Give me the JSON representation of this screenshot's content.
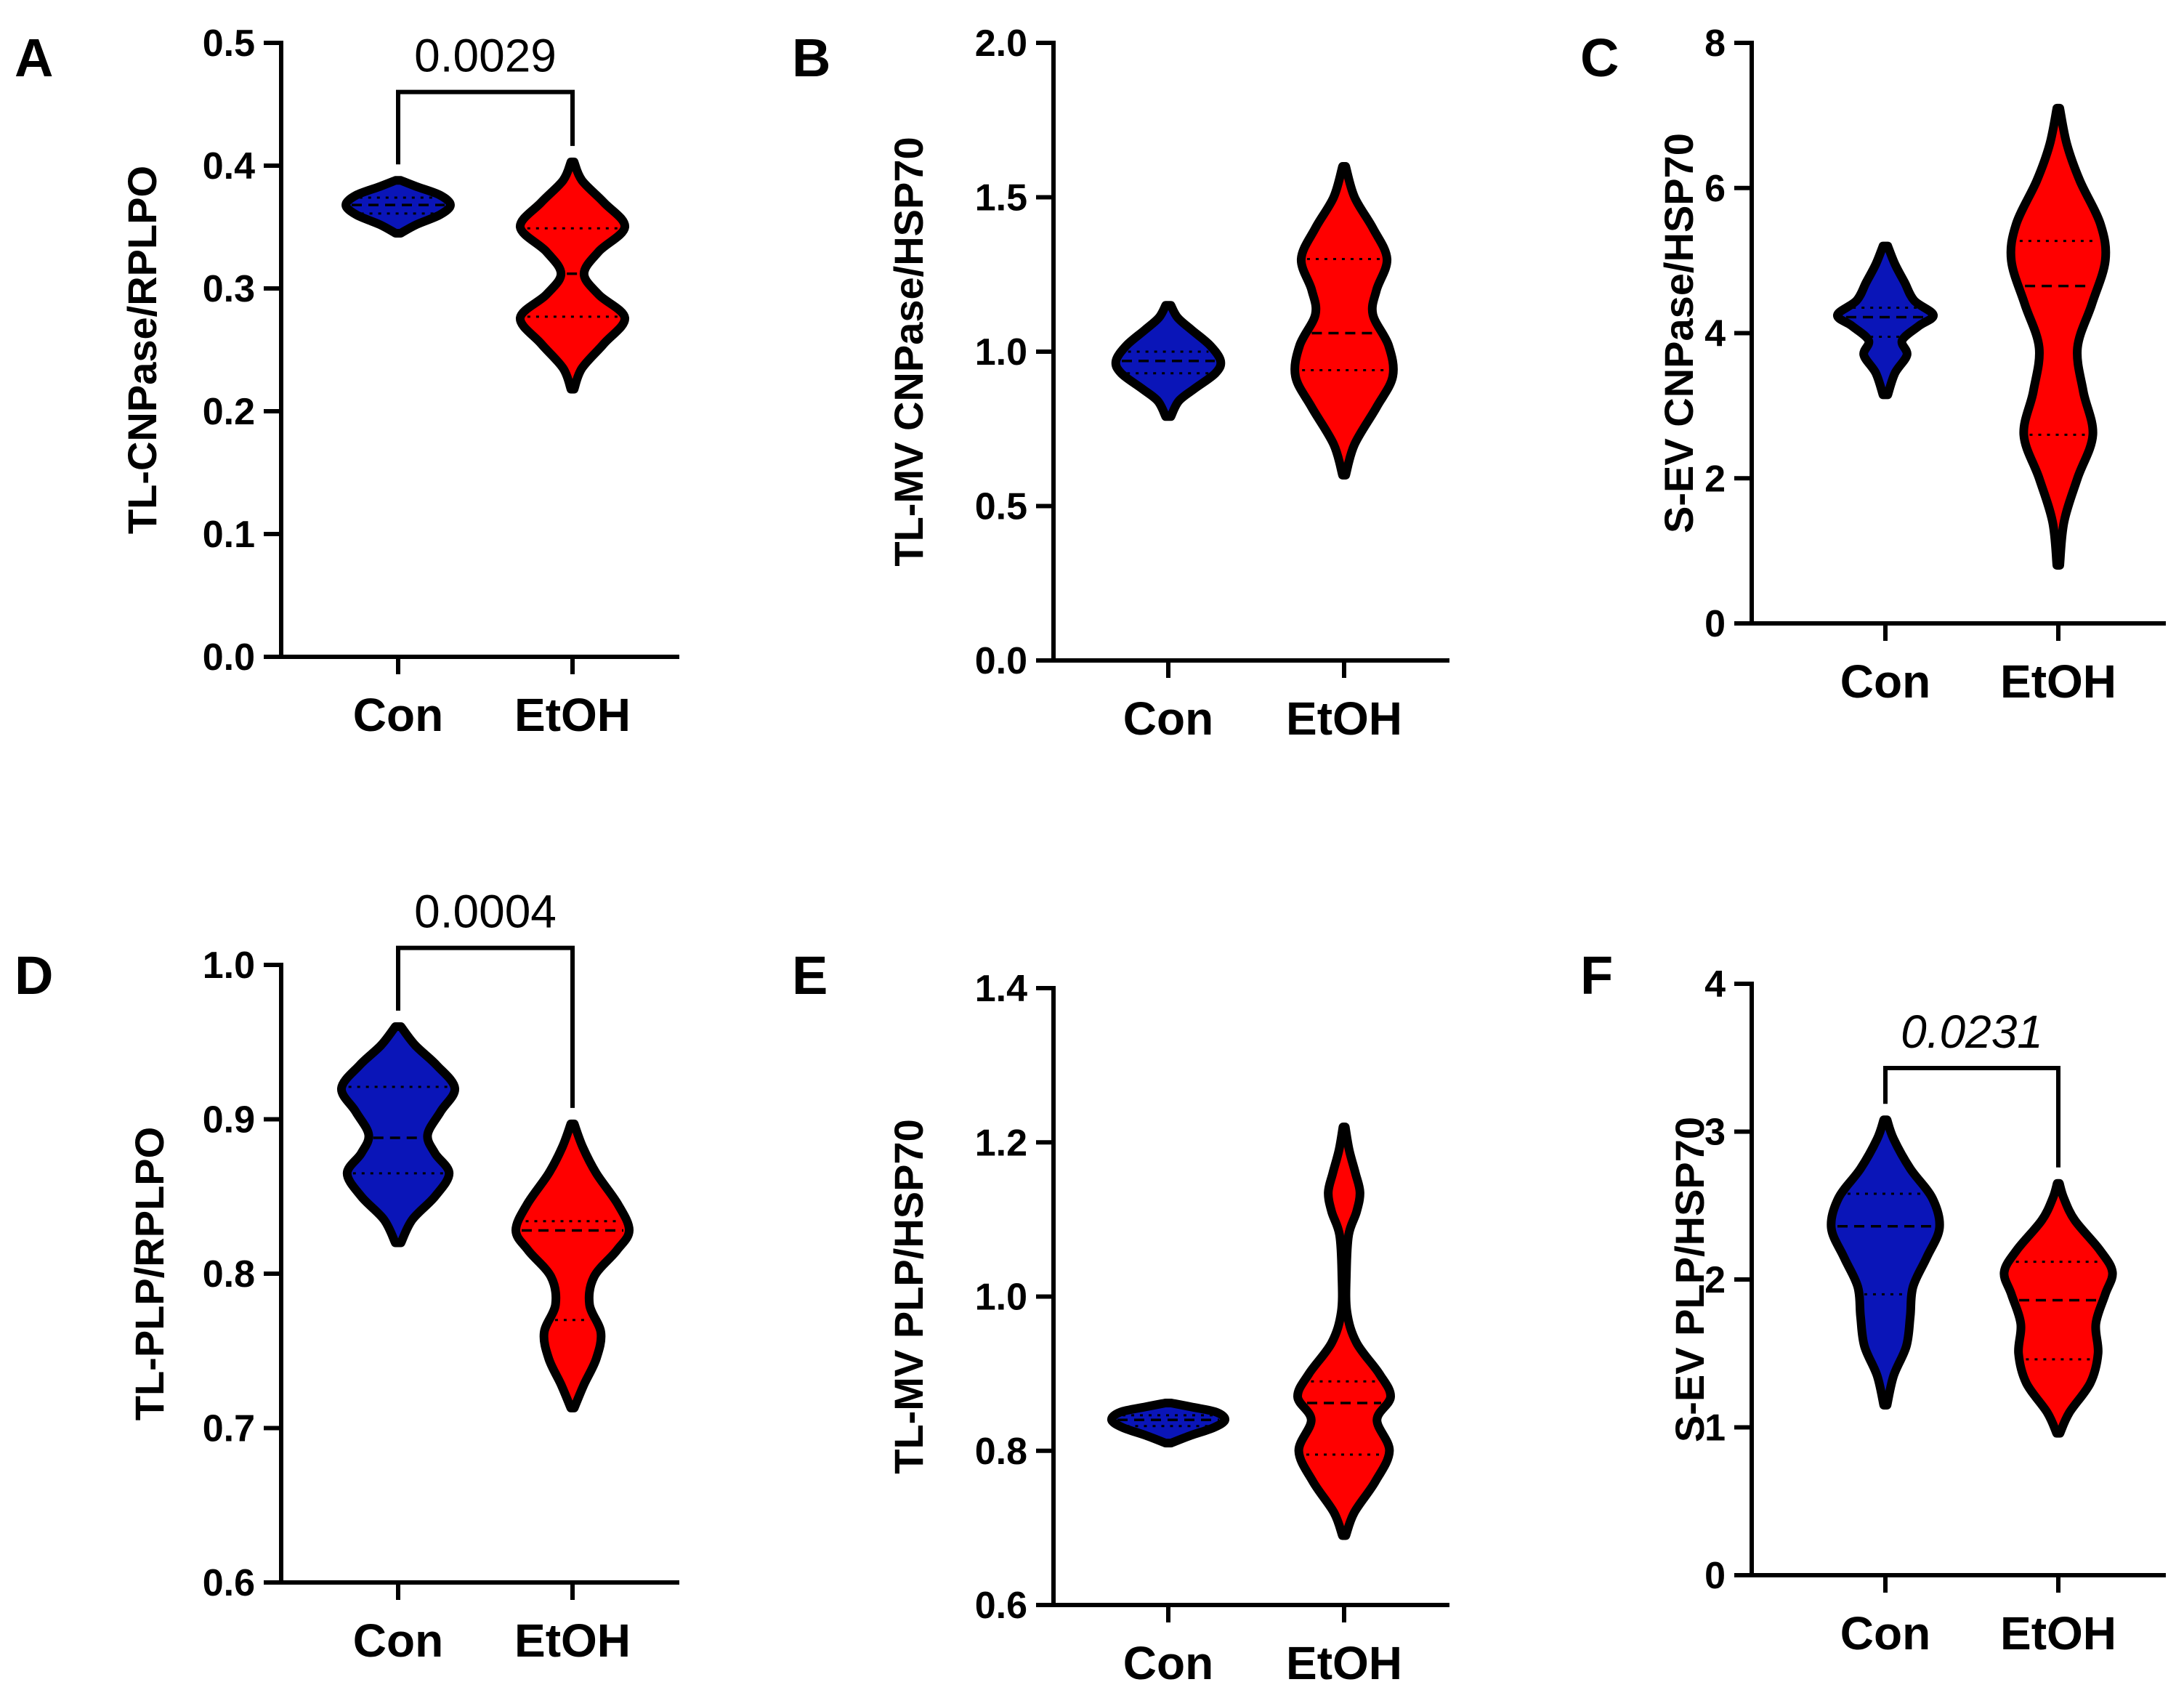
{
  "colors": {
    "con": "#0a15b8",
    "etoh": "#ff0000"
  },
  "chart_data": [
    {
      "id": "A",
      "panel_label": "A",
      "type": "violin",
      "ylabel": "TL-CNPase/RPLPO",
      "ylim": [
        0,
        0.5
      ],
      "yticks": [
        0.0,
        0.1,
        0.2,
        0.3,
        0.4,
        0.5
      ],
      "tick_labels": [
        "0.0",
        "0.1",
        "0.2",
        "0.3",
        "0.4",
        "0.5"
      ],
      "categories": [
        "Con",
        "EtOH"
      ],
      "significance": {
        "label": "0.0029",
        "italic": false,
        "y": 0.46
      },
      "series": [
        {
          "name": "Con",
          "color": "con",
          "min": 0.345,
          "max": 0.388,
          "median": 0.368,
          "q1": 0.361,
          "q3": 0.374,
          "profile": [
            [
              0.345,
              0.05
            ],
            [
              0.352,
              0.35
            ],
            [
              0.36,
              0.8
            ],
            [
              0.368,
              1.0
            ],
            [
              0.376,
              0.8
            ],
            [
              0.383,
              0.35
            ],
            [
              0.388,
              0.05
            ]
          ]
        },
        {
          "name": "EtOH",
          "color": "etoh",
          "min": 0.218,
          "max": 0.403,
          "median": 0.312,
          "q1": 0.277,
          "q3": 0.349,
          "profile": [
            [
              0.218,
              0.03
            ],
            [
              0.235,
              0.18
            ],
            [
              0.255,
              0.6
            ],
            [
              0.276,
              1.0
            ],
            [
              0.295,
              0.5
            ],
            [
              0.312,
              0.22
            ],
            [
              0.33,
              0.5
            ],
            [
              0.35,
              1.0
            ],
            [
              0.37,
              0.6
            ],
            [
              0.388,
              0.18
            ],
            [
              0.403,
              0.03
            ]
          ]
        }
      ]
    },
    {
      "id": "B",
      "panel_label": "B",
      "type": "violin",
      "ylabel": "TL-MV CNPase/HSP70",
      "ylim": [
        0,
        2.0
      ],
      "yticks": [
        0.0,
        0.5,
        1.0,
        1.5,
        2.0
      ],
      "tick_labels": [
        "0.0",
        "0.5",
        "1.0",
        "1.5",
        "2.0"
      ],
      "categories": [
        "Con",
        "EtOH"
      ],
      "series": [
        {
          "name": "Con",
          "color": "con",
          "min": 0.79,
          "max": 1.15,
          "median": 0.97,
          "q1": 0.93,
          "q3": 1.0,
          "profile": [
            [
              0.79,
              0.05
            ],
            [
              0.84,
              0.2
            ],
            [
              0.88,
              0.5
            ],
            [
              0.93,
              0.9
            ],
            [
              0.97,
              1.0
            ],
            [
              1.02,
              0.8
            ],
            [
              1.07,
              0.45
            ],
            [
              1.11,
              0.18
            ],
            [
              1.15,
              0.05
            ]
          ]
        },
        {
          "name": "EtOH",
          "color": "etoh",
          "min": 0.6,
          "max": 1.6,
          "median": 1.06,
          "q1": 0.94,
          "q3": 1.3,
          "profile": [
            [
              0.6,
              0.03
            ],
            [
              0.7,
              0.2
            ],
            [
              0.82,
              0.62
            ],
            [
              0.92,
              0.93
            ],
            [
              1.02,
              0.85
            ],
            [
              1.12,
              0.55
            ],
            [
              1.2,
              0.62
            ],
            [
              1.3,
              0.82
            ],
            [
              1.4,
              0.55
            ],
            [
              1.5,
              0.2
            ],
            [
              1.6,
              0.03
            ]
          ]
        }
      ]
    },
    {
      "id": "C",
      "panel_label": "C",
      "type": "violin",
      "ylabel": "S-EV CNPase/HSP70",
      "ylim": [
        0,
        8
      ],
      "yticks": [
        0,
        2,
        4,
        6,
        8
      ],
      "tick_labels": [
        "0",
        "2",
        "4",
        "6",
        "8"
      ],
      "categories": [
        "Con",
        "EtOH"
      ],
      "series": [
        {
          "name": "Con",
          "color": "con",
          "min": 3.15,
          "max": 5.2,
          "median": 4.22,
          "q1": 3.95,
          "q3": 4.35,
          "profile": [
            [
              3.15,
              0.05
            ],
            [
              3.45,
              0.2
            ],
            [
              3.7,
              0.45
            ],
            [
              3.9,
              0.35
            ],
            [
              4.1,
              0.7
            ],
            [
              4.25,
              1.0
            ],
            [
              4.45,
              0.6
            ],
            [
              4.7,
              0.4
            ],
            [
              4.95,
              0.2
            ],
            [
              5.2,
              0.05
            ]
          ]
        },
        {
          "name": "EtOH",
          "color": "etoh",
          "min": 0.8,
          "max": 7.1,
          "median": 4.65,
          "q1": 2.6,
          "q3": 5.27,
          "profile": [
            [
              0.8,
              0.03
            ],
            [
              1.4,
              0.12
            ],
            [
              2.0,
              0.4
            ],
            [
              2.6,
              0.72
            ],
            [
              3.2,
              0.52
            ],
            [
              3.8,
              0.4
            ],
            [
              4.4,
              0.7
            ],
            [
              5.0,
              0.98
            ],
            [
              5.5,
              0.88
            ],
            [
              6.1,
              0.45
            ],
            [
              6.6,
              0.18
            ],
            [
              7.1,
              0.03
            ]
          ]
        }
      ]
    },
    {
      "id": "D",
      "panel_label": "D",
      "type": "violin",
      "ylabel": "TL-PLP/RPLPO",
      "ylim": [
        0.6,
        1.0
      ],
      "yticks": [
        0.6,
        0.7,
        0.8,
        0.9,
        1.0
      ],
      "tick_labels": [
        "0.6",
        "0.7",
        "0.8",
        "0.9",
        "1.0"
      ],
      "categories": [
        "Con",
        "EtOH"
      ],
      "significance": {
        "label": "0.0004",
        "italic": false,
        "y": 1.011
      },
      "series": [
        {
          "name": "Con",
          "color": "con",
          "min": 0.82,
          "max": 0.96,
          "median": 0.888,
          "q1": 0.865,
          "q3": 0.921,
          "profile": [
            [
              0.82,
              0.05
            ],
            [
              0.835,
              0.25
            ],
            [
              0.85,
              0.65
            ],
            [
              0.865,
              0.9
            ],
            [
              0.878,
              0.65
            ],
            [
              0.89,
              0.52
            ],
            [
              0.905,
              0.75
            ],
            [
              0.92,
              1.0
            ],
            [
              0.935,
              0.68
            ],
            [
              0.948,
              0.3
            ],
            [
              0.96,
              0.05
            ]
          ]
        },
        {
          "name": "EtOH",
          "color": "etoh",
          "min": 0.713,
          "max": 0.897,
          "median": 0.828,
          "q1": 0.77,
          "q3": 0.834,
          "profile": [
            [
              0.713,
              0.03
            ],
            [
              0.728,
              0.2
            ],
            [
              0.745,
              0.42
            ],
            [
              0.762,
              0.5
            ],
            [
              0.78,
              0.3
            ],
            [
              0.798,
              0.38
            ],
            [
              0.815,
              0.78
            ],
            [
              0.828,
              1.0
            ],
            [
              0.845,
              0.8
            ],
            [
              0.865,
              0.42
            ],
            [
              0.882,
              0.18
            ],
            [
              0.897,
              0.03
            ]
          ]
        }
      ]
    },
    {
      "id": "E",
      "panel_label": "E",
      "type": "violin",
      "ylabel": "TL-MV PLP/HSP70",
      "ylim": [
        0.6,
        1.4
      ],
      "yticks": [
        0.6,
        0.8,
        1.0,
        1.2,
        1.4
      ],
      "tick_labels": [
        "0.6",
        "0.8",
        "1.0",
        "1.2",
        "1.4"
      ],
      "categories": [
        "Con",
        "EtOH"
      ],
      "series": [
        {
          "name": "Con",
          "color": "con",
          "min": 0.81,
          "max": 0.862,
          "median": 0.84,
          "q1": 0.832,
          "q3": 0.846,
          "profile": [
            [
              0.81,
              0.05
            ],
            [
              0.82,
              0.4
            ],
            [
              0.83,
              0.8
            ],
            [
              0.84,
              1.0
            ],
            [
              0.85,
              0.85
            ],
            [
              0.857,
              0.4
            ],
            [
              0.862,
              0.05
            ]
          ]
        },
        {
          "name": "EtOH",
          "color": "etoh",
          "min": 0.69,
          "max": 1.22,
          "median": 0.862,
          "q1": 0.795,
          "q3": 0.89,
          "profile": [
            [
              0.69,
              0.03
            ],
            [
              0.72,
              0.18
            ],
            [
              0.76,
              0.55
            ],
            [
              0.8,
              0.8
            ],
            [
              0.84,
              0.58
            ],
            [
              0.87,
              0.82
            ],
            [
              0.9,
              0.62
            ],
            [
              0.94,
              0.22
            ],
            [
              0.98,
              0.05
            ],
            [
              1.03,
              0.04
            ],
            [
              1.08,
              0.08
            ],
            [
              1.11,
              0.22
            ],
            [
              1.135,
              0.28
            ],
            [
              1.16,
              0.2
            ],
            [
              1.19,
              0.09
            ],
            [
              1.22,
              0.02
            ]
          ]
        }
      ]
    },
    {
      "id": "F",
      "panel_label": "F",
      "type": "violin",
      "ylabel": "S-EV PLP/HSP70",
      "ylim": [
        0,
        4
      ],
      "yticks": [
        0,
        1,
        2,
        3,
        4
      ],
      "tick_labels": [
        "0",
        "1",
        "2",
        "3",
        "4"
      ],
      "categories": [
        "Con",
        "EtOH"
      ],
      "significance": {
        "label": "0.0231",
        "italic": true,
        "y": 3.43
      },
      "series": [
        {
          "name": "Con",
          "color": "con",
          "min": 1.15,
          "max": 3.08,
          "median": 2.36,
          "q1": 1.9,
          "q3": 2.58,
          "profile": [
            [
              1.15,
              0.03
            ],
            [
              1.35,
              0.15
            ],
            [
              1.55,
              0.38
            ],
            [
              1.75,
              0.45
            ],
            [
              1.95,
              0.5
            ],
            [
              2.15,
              0.75
            ],
            [
              2.35,
              0.98
            ],
            [
              2.55,
              0.85
            ],
            [
              2.75,
              0.45
            ],
            [
              2.95,
              0.15
            ],
            [
              3.08,
              0.03
            ]
          ]
        },
        {
          "name": "EtOH",
          "color": "etoh",
          "min": 0.96,
          "max": 2.65,
          "median": 1.86,
          "q1": 1.46,
          "q3": 2.12,
          "profile": [
            [
              0.96,
              0.03
            ],
            [
              1.1,
              0.2
            ],
            [
              1.3,
              0.58
            ],
            [
              1.5,
              0.72
            ],
            [
              1.7,
              0.68
            ],
            [
              1.9,
              0.85
            ],
            [
              2.05,
              0.98
            ],
            [
              2.2,
              0.75
            ],
            [
              2.4,
              0.3
            ],
            [
              2.55,
              0.1
            ],
            [
              2.65,
              0.02
            ]
          ]
        }
      ]
    }
  ]
}
